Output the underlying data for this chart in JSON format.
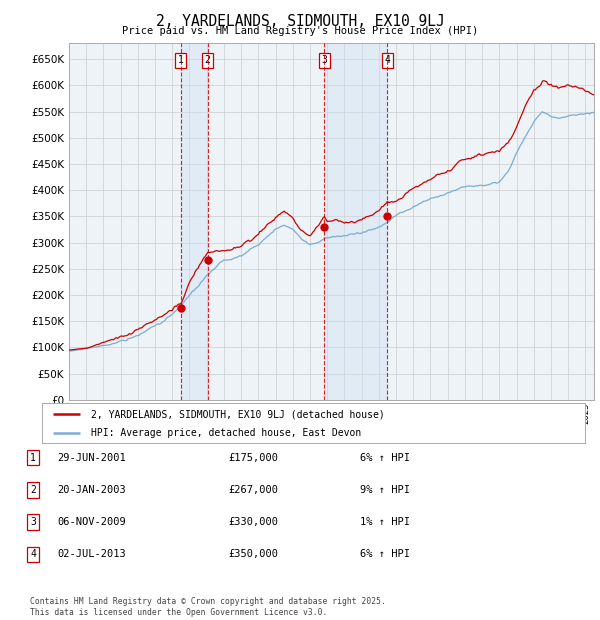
{
  "title": "2, YARDELANDS, SIDMOUTH, EX10 9LJ",
  "subtitle": "Price paid vs. HM Land Registry's House Price Index (HPI)",
  "ytick_values": [
    0,
    50000,
    100000,
    150000,
    200000,
    250000,
    300000,
    350000,
    400000,
    450000,
    500000,
    550000,
    600000,
    650000
  ],
  "ylim": [
    0,
    680000
  ],
  "xlim_start": 1995.0,
  "xlim_end": 2025.5,
  "sale_dates": [
    2001.49,
    2003.05,
    2009.84,
    2013.5
  ],
  "sale_prices": [
    175000,
    267000,
    330000,
    350000
  ],
  "sale_labels": [
    "1",
    "2",
    "3",
    "4"
  ],
  "legend_line1": "2, YARDELANDS, SIDMOUTH, EX10 9LJ (detached house)",
  "legend_line2": "HPI: Average price, detached house, East Devon",
  "table_entries": [
    {
      "num": "1",
      "date": "29-JUN-2001",
      "price": "£175,000",
      "pct": "6% ↑ HPI"
    },
    {
      "num": "2",
      "date": "20-JAN-2003",
      "price": "£267,000",
      "pct": "9% ↑ HPI"
    },
    {
      "num": "3",
      "date": "06-NOV-2009",
      "price": "£330,000",
      "pct": "1% ↑ HPI"
    },
    {
      "num": "4",
      "date": "02-JUL-2013",
      "price": "£350,000",
      "pct": "6% ↑ HPI"
    }
  ],
  "footnote": "Contains HM Land Registry data © Crown copyright and database right 2025.\nThis data is licensed under the Open Government Licence v3.0.",
  "hpi_color": "#7aadd4",
  "price_color": "#cc0000",
  "grid_color": "#cccccc",
  "chart_bg": "#eef3f8",
  "shade_color": "#c8ddf0",
  "dashed_color": "#cc0000",
  "background_color": "#ffffff",
  "dot_color": "#cc0000"
}
